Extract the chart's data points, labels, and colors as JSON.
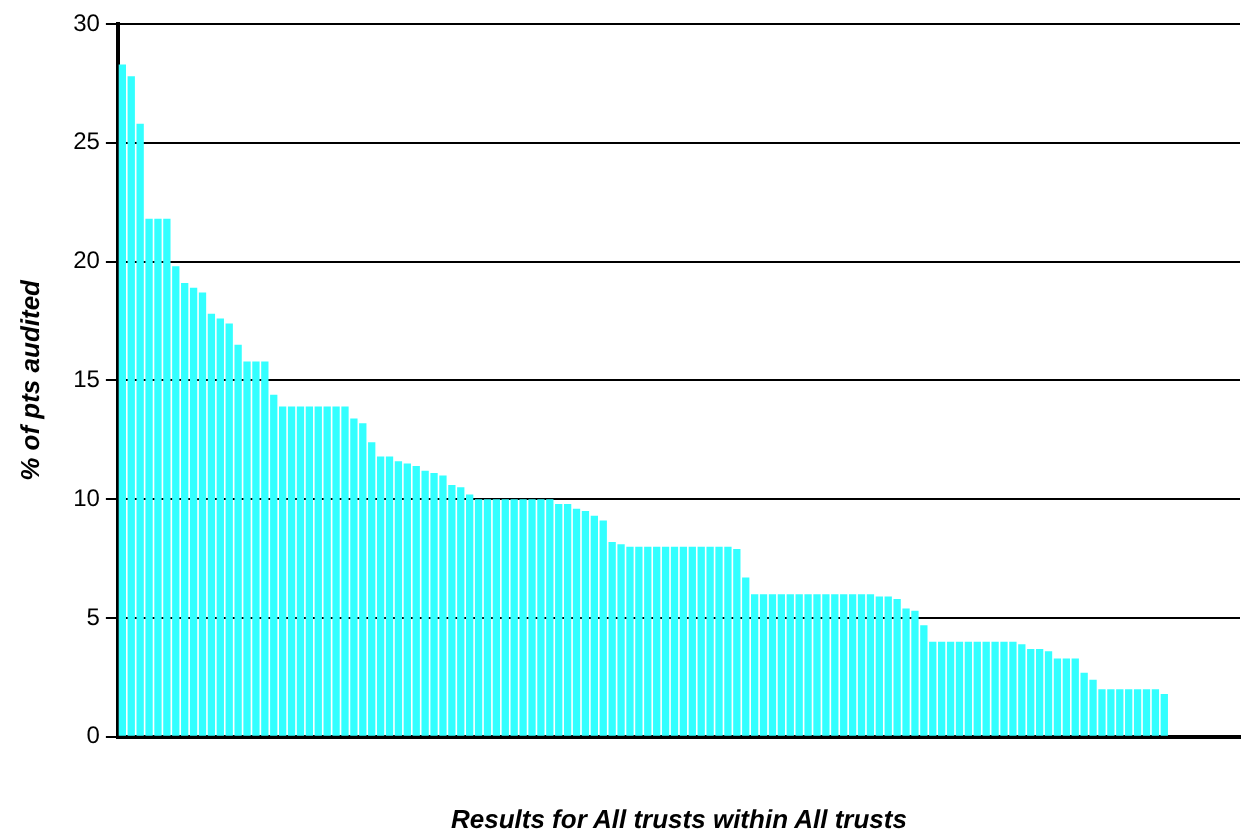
{
  "chart_data": {
    "type": "bar",
    "xlabel": "Results for All trusts within All trusts",
    "ylabel": "% of pts audited",
    "categories": [
      null,
      null,
      null,
      null,
      null,
      null,
      null,
      null,
      null,
      null,
      null,
      null,
      null,
      null,
      null,
      null,
      null,
      null,
      null,
      null,
      null,
      null,
      null,
      null,
      null,
      null,
      null,
      null,
      null,
      null,
      null,
      null,
      null,
      null,
      null,
      null,
      null,
      null,
      null,
      null,
      null,
      null,
      null,
      null,
      null,
      null,
      null,
      null,
      null,
      null,
      null,
      null,
      null,
      null,
      null,
      null,
      null,
      null,
      null,
      null,
      null,
      null,
      null,
      null,
      null,
      null,
      null,
      null,
      null,
      null,
      null,
      null,
      null,
      null,
      null,
      null,
      null,
      null,
      null,
      null,
      null,
      null,
      null,
      null,
      null,
      null,
      null,
      null,
      null,
      null,
      null,
      null,
      null,
      null,
      null,
      null,
      null,
      null,
      null,
      null,
      null,
      null,
      null,
      null,
      null,
      null,
      null,
      null,
      null,
      null,
      null,
      null,
      null,
      null,
      null,
      null,
      null,
      null,
      null,
      null,
      null,
      null,
      null,
      null,
      null,
      null
    ],
    "values": [
      28.3,
      27.8,
      25.8,
      21.8,
      21.8,
      21.8,
      19.8,
      19.1,
      18.9,
      18.7,
      17.8,
      17.6,
      17.4,
      16.5,
      15.8,
      15.8,
      15.8,
      14.4,
      13.9,
      13.9,
      13.9,
      13.9,
      13.9,
      13.9,
      13.9,
      13.9,
      13.4,
      13.2,
      12.4,
      11.8,
      11.8,
      11.6,
      11.5,
      11.4,
      11.2,
      11.1,
      11.0,
      10.6,
      10.5,
      10.2,
      10.0,
      10.0,
      10.0,
      10.0,
      10.0,
      10.0,
      10.0,
      10.0,
      10.0,
      9.8,
      9.8,
      9.6,
      9.5,
      9.3,
      9.1,
      8.2,
      8.1,
      8.0,
      8.0,
      8.0,
      8.0,
      8.0,
      8.0,
      8.0,
      8.0,
      8.0,
      8.0,
      8.0,
      8.0,
      7.9,
      6.7,
      6.0,
      6.0,
      6.0,
      6.0,
      6.0,
      6.0,
      6.0,
      6.0,
      6.0,
      6.0,
      6.0,
      6.0,
      6.0,
      6.0,
      5.9,
      5.9,
      5.8,
      5.4,
      5.3,
      4.7,
      4.0,
      4.0,
      4.0,
      4.0,
      4.0,
      4.0,
      4.0,
      4.0,
      4.0,
      4.0,
      3.9,
      3.7,
      3.7,
      3.6,
      3.3,
      3.3,
      3.3,
      2.7,
      2.4,
      2.0,
      2.0,
      2.0,
      2.0,
      2.0,
      2.0,
      2.0,
      1.8,
      null,
      null,
      null,
      null,
      null,
      null,
      null,
      null
    ],
    "color": "#33ffff",
    "ylim": [
      0,
      30
    ],
    "yticks": [
      0,
      5,
      10,
      15,
      20,
      25,
      30
    ],
    "grid": "y",
    "legend": false,
    "tick_labels": "y"
  }
}
